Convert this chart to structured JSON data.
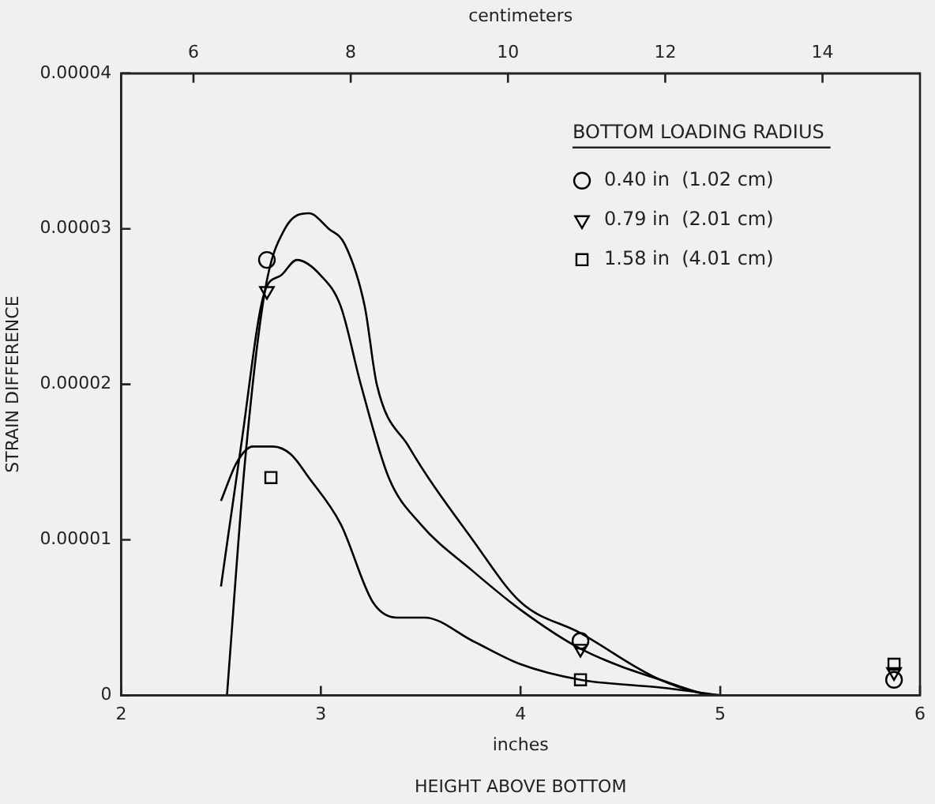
{
  "chart_data": {
    "type": "line",
    "xlabel": "HEIGHT ABOVE BOTTOM",
    "ylabel": "STRAIN DIFFERENCE",
    "x2label": "centimeters",
    "legend_title": "BOTTOM LOADING RADIUS",
    "annotations": [
      "inches"
    ],
    "xlim": [
      2,
      6
    ],
    "xticks": [
      2,
      3,
      4,
      5,
      6
    ],
    "x2lim": [
      5.08,
      15.24
    ],
    "x2ticks": [
      6,
      8,
      10,
      12,
      14
    ],
    "ylim": [
      0,
      4e-05
    ],
    "yticks": [
      {
        "value": 0,
        "label": "0"
      },
      {
        "value": 1e-05,
        "label": "0.00001"
      },
      {
        "value": 2e-05,
        "label": "0.00002"
      },
      {
        "value": 3e-05,
        "label": "0.00003"
      },
      {
        "value": 4e-05,
        "label": "0.00004"
      }
    ],
    "grid": false,
    "legend": "top right",
    "series": [
      {
        "color": "#000000",
        "marker": "none",
        "x": [
          2.53,
          2.62,
          2.72,
          2.82,
          2.94,
          3.04,
          3.12,
          3.22,
          3.28,
          3.44,
          3.76,
          4.0,
          4.3,
          4.7,
          5.0,
          5.3,
          5.6
        ],
        "values": [
          0,
          1.5e-05,
          2.6e-05,
          3e-05,
          3.1e-05,
          3e-05,
          2.9e-05,
          2.5e-05,
          2e-05,
          1.6e-05,
          1e-05,
          6e-06,
          4e-06,
          1e-06,
          0,
          0,
          0
        ]
      },
      {
        "color": "#000000",
        "marker": "none",
        "x": [
          2.5,
          2.6,
          2.72,
          2.8,
          2.88,
          3.0,
          3.1,
          3.2,
          3.34,
          3.5,
          3.76,
          4.0,
          4.3,
          4.7,
          5.0,
          5.3,
          5.6
        ],
        "values": [
          7e-06,
          1.6e-05,
          2.6e-05,
          2.7e-05,
          2.8e-05,
          2.7e-05,
          2.5e-05,
          2e-05,
          1.4e-05,
          1.1e-05,
          8e-06,
          5.5e-06,
          3e-06,
          1e-06,
          0,
          0,
          0
        ]
      },
      {
        "color": "#000000",
        "marker": "none",
        "x": [
          2.5,
          2.58,
          2.66,
          2.76,
          2.85,
          2.94,
          3.1,
          3.26,
          3.38,
          3.52,
          3.76,
          4.0,
          4.3,
          4.7,
          5.0
        ],
        "values": [
          1.25e-05,
          1.5e-05,
          1.6e-05,
          1.6e-05,
          1.55e-05,
          1.4e-05,
          1.1e-05,
          6e-06,
          5e-06,
          5e-06,
          3.5e-06,
          2e-06,
          1e-06,
          5e-07,
          0
        ]
      },
      {
        "type": "scatter",
        "name": "0.40 in  (1.02 cm)",
        "color": "#000000",
        "marker": "circle",
        "x": [
          2.73,
          4.3,
          5.87
        ],
        "values": [
          2.8e-05,
          3.5e-06,
          1e-06
        ]
      },
      {
        "type": "scatter",
        "name": "0.79 in  (2.01 cm)",
        "color": "#000000",
        "marker": "triangle",
        "x": [
          2.73,
          4.3,
          5.87
        ],
        "values": [
          2.6e-05,
          3e-06,
          1.5e-06
        ]
      },
      {
        "type": "scatter",
        "name": "1.58 in  (4.01 cm)",
        "color": "#000000",
        "marker": "square",
        "x": [
          2.75,
          4.3,
          5.87
        ],
        "values": [
          1.4e-05,
          1e-06,
          2e-06
        ]
      }
    ]
  }
}
